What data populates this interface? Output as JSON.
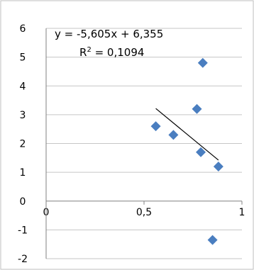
{
  "colors": {
    "marker": "#4a7ec0",
    "grid": "#c6c6c6",
    "axis": "#808080",
    "trendline": "#000000",
    "frame": "#bfbfbf"
  },
  "chart_data": {
    "type": "scatter",
    "xlim": [
      0,
      1
    ],
    "ylim": [
      -2,
      6
    ],
    "x_ticks": [
      0,
      0.5,
      1
    ],
    "x_tick_labels": [
      "0",
      "0,5",
      "1"
    ],
    "y_ticks": [
      -2,
      -1,
      0,
      1,
      2,
      3,
      4,
      5,
      6
    ],
    "y_tick_labels": [
      "-2",
      "-1",
      "0",
      "1",
      "2",
      "3",
      "4",
      "5",
      "6"
    ],
    "grid": "horizontal",
    "marker": "diamond",
    "points": [
      {
        "x": 0.56,
        "y": 2.6
      },
      {
        "x": 0.65,
        "y": 2.3
      },
      {
        "x": 0.77,
        "y": 3.2
      },
      {
        "x": 0.79,
        "y": 1.7
      },
      {
        "x": 0.8,
        "y": 4.8
      },
      {
        "x": 0.88,
        "y": 1.2
      },
      {
        "x": 0.85,
        "y": -1.35
      }
    ],
    "trendline": {
      "x_range": [
        0.56,
        0.88
      ],
      "equation_text": "y = -5,605x + 6,355",
      "r2_label": "R",
      "r2_sup": "2",
      "r2_value": " = 0,1094"
    }
  }
}
